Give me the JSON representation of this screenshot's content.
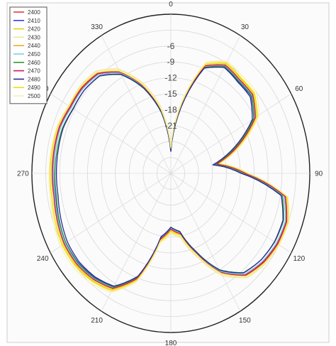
{
  "chart_data": {
    "type": "line",
    "projection": "polar",
    "angle_ticks": [
      "0",
      "30",
      "60",
      "90",
      "120",
      "150",
      "180",
      "210",
      "240",
      "270",
      "300",
      "330"
    ],
    "radial_ticks": [
      "-6",
      "-9",
      "-12",
      "-15",
      "-18",
      "-21"
    ],
    "rlim": [
      -30,
      0
    ],
    "angle_unit": "degrees",
    "angle_zero": "top",
    "angle_direction": "clockwise",
    "grid": true,
    "legend_position": "top-left",
    "base_pattern": {
      "theta": [
        0,
        10,
        20,
        30,
        40,
        50,
        60,
        70,
        80,
        90,
        100,
        110,
        120,
        130,
        140,
        150,
        160,
        170,
        180,
        190,
        200,
        210,
        220,
        230,
        240,
        250,
        260,
        270,
        280,
        290,
        300,
        310,
        320,
        330,
        340,
        350,
        360
      ],
      "r": [
        -25.5,
        -17,
        -8.5,
        -6.5,
        -7,
        -7,
        -9,
        -14.5,
        -20,
        -14,
        -5,
        -3.5,
        -3.5,
        -4,
        -5,
        -8.5,
        -14,
        -18.5,
        -19.5,
        -17.5,
        -9,
        -5,
        -4,
        -3.5,
        -3.5,
        -4,
        -4.5,
        -4.5,
        -4.5,
        -4.5,
        -5,
        -5,
        -5.5,
        -8,
        -12.5,
        -18,
        -25.5
      ]
    },
    "series": [
      {
        "name": "2400",
        "color": "#e83b3b",
        "offset": 0.0
      },
      {
        "name": "2410",
        "color": "#3b3be8",
        "offset": -0.4
      },
      {
        "name": "2420",
        "color": "#e8d200",
        "offset": 0.4
      },
      {
        "name": "2430",
        "color": "#f2e48c",
        "offset": 0.8
      },
      {
        "name": "2440",
        "color": "#f5a623",
        "offset": 0.2
      },
      {
        "name": "2450",
        "color": "#7fd0e0",
        "offset": -0.2
      },
      {
        "name": "2460",
        "color": "#2e9a2e",
        "offset": -0.6
      },
      {
        "name": "2470",
        "color": "#d4145a",
        "offset": 0.1
      },
      {
        "name": "2480",
        "color": "#2a2a9e",
        "offset": -0.8
      },
      {
        "name": "2490",
        "color": "#f0e000",
        "offset": 0.6
      },
      {
        "name": "2500",
        "color": "#f7efb0",
        "offset": 1.0
      }
    ]
  }
}
